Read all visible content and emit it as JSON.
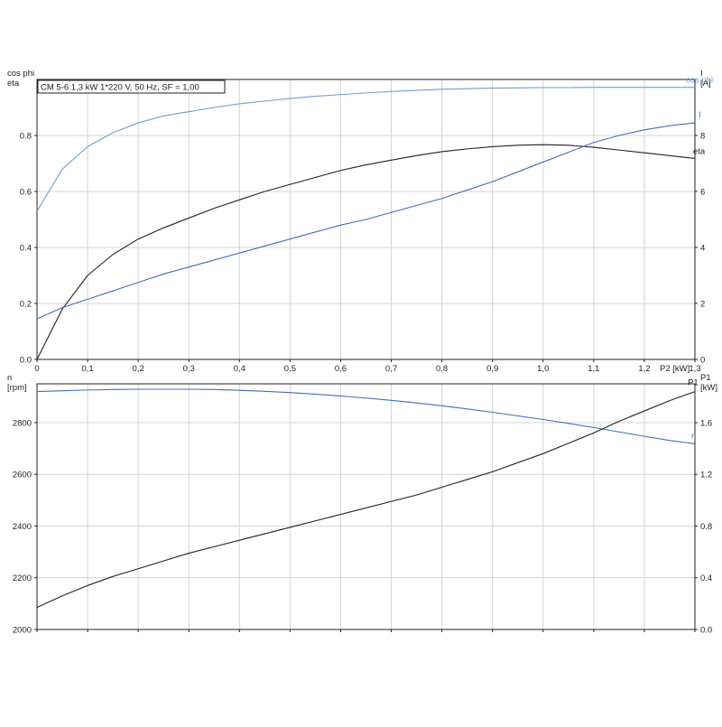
{
  "chart_data": [
    {
      "type": "line",
      "title": "CM 5-6   1,3 kW   1*220 V, 50 Hz, SF = 1,00",
      "xlabel": "P2 [kW]",
      "xlim": [
        0,
        1.3
      ],
      "xticks": [
        "0",
        "0,1",
        "0,2",
        "0,3",
        "0,4",
        "0,5",
        "0,6",
        "0,7",
        "0,8",
        "0,9",
        "1,0",
        "1,1",
        "1,2",
        "1,3"
      ],
      "y_left": {
        "label_top": "cos phi",
        "label_bottom": "eta",
        "ylim": [
          0,
          1.0
        ],
        "ticks": [
          "0.0",
          "0.2",
          "0.4",
          "0.6",
          "0.8"
        ]
      },
      "y_right": {
        "label_top": "I",
        "label_bottom": "[A]",
        "ylim": [
          0,
          10
        ],
        "ticks": [
          "0",
          "2",
          "4",
          "6",
          "8"
        ]
      },
      "grid": true,
      "x": [
        0,
        0.05,
        0.1,
        0.15,
        0.2,
        0.25,
        0.3,
        0.35,
        0.4,
        0.45,
        0.5,
        0.55,
        0.6,
        0.65,
        0.7,
        0.75,
        0.8,
        0.85,
        0.9,
        0.95,
        1.0,
        1.05,
        1.1,
        1.15,
        1.2,
        1.25,
        1.3
      ],
      "series": [
        {
          "name": "cos phi",
          "axis": "left",
          "color": "#6f9fd0",
          "values": [
            0.53,
            0.68,
            0.76,
            0.81,
            0.845,
            0.87,
            0.885,
            0.9,
            0.913,
            0.923,
            0.932,
            0.94,
            0.946,
            0.952,
            0.957,
            0.961,
            0.965,
            0.967,
            0.969,
            0.97,
            0.971,
            0.971,
            0.972,
            0.972,
            0.972,
            0.972,
            0.972
          ]
        },
        {
          "name": "eta",
          "axis": "left",
          "color": "#222222",
          "values": [
            0.0,
            0.18,
            0.3,
            0.375,
            0.43,
            0.47,
            0.505,
            0.54,
            0.57,
            0.6,
            0.625,
            0.65,
            0.675,
            0.695,
            0.712,
            0.728,
            0.742,
            0.752,
            0.76,
            0.765,
            0.767,
            0.765,
            0.758,
            0.748,
            0.738,
            0.728,
            0.718
          ]
        },
        {
          "name": "I",
          "axis": "right",
          "color": "#3f6fb8",
          "values": [
            1.45,
            1.85,
            2.15,
            2.45,
            2.75,
            3.05,
            3.3,
            3.55,
            3.8,
            4.05,
            4.3,
            4.55,
            4.8,
            5.0,
            5.25,
            5.5,
            5.75,
            6.05,
            6.35,
            6.7,
            7.05,
            7.4,
            7.75,
            8.0,
            8.2,
            8.35,
            8.45
          ]
        }
      ]
    },
    {
      "type": "line",
      "xlim": [
        0,
        1.3
      ],
      "y_left": {
        "label_top": "n",
        "label_bottom": "[rpm]",
        "ylim": [
          2000,
          2950
        ],
        "ticks": [
          "2000",
          "2200",
          "2400",
          "2600",
          "2800"
        ]
      },
      "y_right": {
        "label_top": "P1",
        "label_bottom": "[kW]",
        "ylim": [
          0.0,
          1.9
        ],
        "ticks": [
          "0.0",
          "0.4",
          "0.8",
          "1.2",
          "1.6"
        ]
      },
      "grid": true,
      "x": [
        0,
        0.05,
        0.1,
        0.15,
        0.2,
        0.25,
        0.3,
        0.35,
        0.4,
        0.45,
        0.5,
        0.55,
        0.6,
        0.65,
        0.7,
        0.75,
        0.8,
        0.85,
        0.9,
        0.95,
        1.0,
        1.05,
        1.1,
        1.15,
        1.2,
        1.25,
        1.3
      ],
      "series": [
        {
          "name": "n",
          "axis": "left",
          "color": "#3f6fb8",
          "values": [
            2920,
            2923,
            2926,
            2928,
            2929,
            2929,
            2929,
            2928,
            2925,
            2921,
            2916,
            2910,
            2903,
            2895,
            2886,
            2876,
            2865,
            2853,
            2840,
            2826,
            2812,
            2797,
            2781,
            2764,
            2747,
            2731,
            2718
          ]
        },
        {
          "name": "P1",
          "axis": "right",
          "color": "#222222",
          "values": [
            0.17,
            0.26,
            0.34,
            0.41,
            0.47,
            0.53,
            0.59,
            0.64,
            0.69,
            0.74,
            0.79,
            0.84,
            0.89,
            0.94,
            0.99,
            1.04,
            1.1,
            1.16,
            1.22,
            1.29,
            1.36,
            1.44,
            1.52,
            1.61,
            1.69,
            1.77,
            1.84
          ]
        }
      ]
    }
  ]
}
